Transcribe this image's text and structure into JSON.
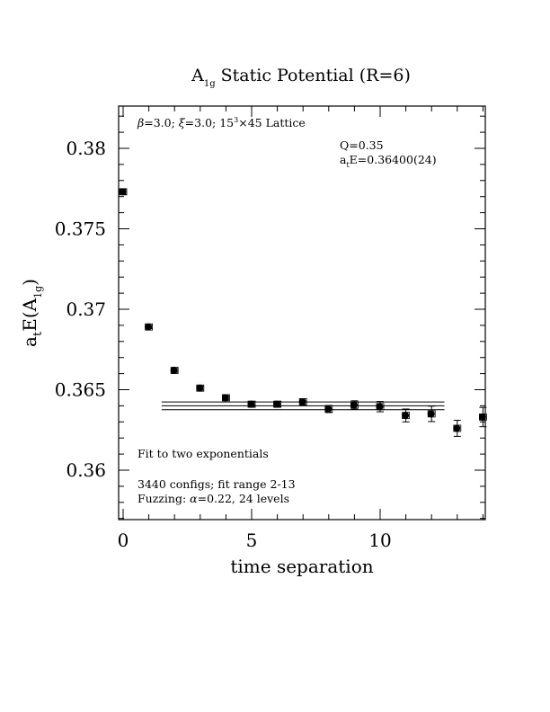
{
  "chart_data": {
    "type": "scatter",
    "title": {
      "main": "A",
      "sub": "1g",
      "rest": " Static Potential (R=6)"
    },
    "xlabel": "time separation",
    "ylabel": {
      "a": "a",
      "t": "t",
      "E": "E(A",
      "sub": "1g",
      "close": ")"
    },
    "xlim": [
      0,
      14
    ],
    "ylim": [
      0.357,
      0.3828
    ],
    "xticks": [
      0,
      5,
      10
    ],
    "xtick_labels": [
      "0",
      "5",
      "10"
    ],
    "yticks": [
      0.36,
      0.365,
      0.37,
      0.375,
      0.38
    ],
    "ytick_labels": [
      "0.36",
      "0.365",
      "0.37",
      "0.375",
      "0.38"
    ],
    "series": [
      {
        "marker": "circle",
        "points": [
          {
            "x": 0,
            "y": 0.3773,
            "err": 0.00015
          },
          {
            "x": 1,
            "y": 0.3689,
            "err": 0.0001
          },
          {
            "x": 2,
            "y": 0.3662,
            "err": 0.00012
          },
          {
            "x": 3,
            "y": 0.3651,
            "err": 0.00012
          },
          {
            "x": 4,
            "y": 0.3645,
            "err": 0.00013
          },
          {
            "x": 5,
            "y": 0.3641,
            "err": 0.00015
          },
          {
            "x": 6,
            "y": 0.3641,
            "err": 0.00017
          },
          {
            "x": 7,
            "y": 0.36425,
            "err": 0.00019
          },
          {
            "x": 8,
            "y": 0.3638,
            "err": 0.00022
          },
          {
            "x": 9,
            "y": 0.36405,
            "err": 0.00026
          },
          {
            "x": 10,
            "y": 0.36395,
            "err": 0.00032
          },
          {
            "x": 11,
            "y": 0.3634,
            "err": 0.0004
          },
          {
            "x": 12,
            "y": 0.3635,
            "err": 0.00048
          },
          {
            "x": 13,
            "y": 0.3626,
            "err": 0.0005
          },
          {
            "x": 14,
            "y": 0.3633,
            "err": 0.0006
          }
        ]
      }
    ],
    "fit": {
      "x_start": 1.5,
      "x_end": 12.5,
      "value": 0.364,
      "err": 0.00024
    },
    "annotations": {
      "lattice": {
        "beta": "β",
        "pre": "=3.0; ",
        "xi": "ξ",
        "mid": "=3.0; 15",
        "exp": "3",
        "post": "×45 Lattice"
      },
      "q": "Q=0.35",
      "energy": {
        "a": "a",
        "t": "t",
        "rest": "E=0.36400(24)"
      },
      "fit_desc": "Fit to two exponentials",
      "configs": "3440 configs; fit range 2-13",
      "fuzzing": {
        "pre": "Fuzzing: ",
        "alpha": "α",
        "post": "=0.22, 24 levels"
      }
    },
    "grid": false,
    "legend": "none"
  }
}
